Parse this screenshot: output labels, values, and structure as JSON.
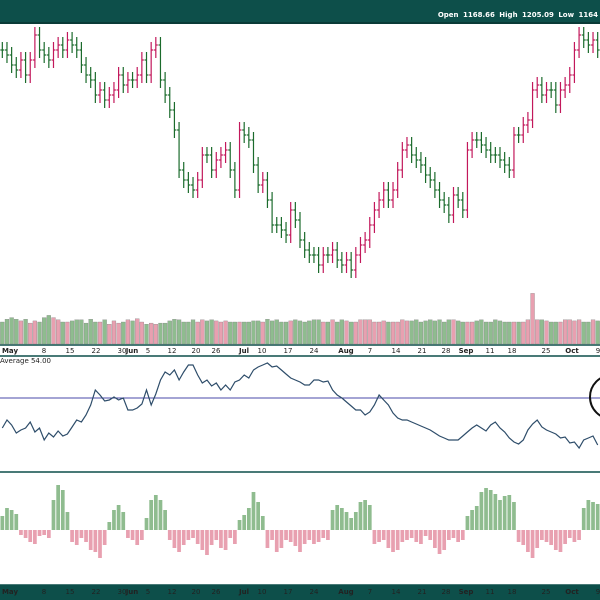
{
  "header": {
    "open_label": "Open",
    "open_value": "1168.66",
    "high_label": "High",
    "high_value": "1205.09",
    "low_label": "Low",
    "low_value": "1164"
  },
  "indicator": {
    "label": "Average 54.00"
  },
  "colors": {
    "up": "#1b6b2c",
    "down": "#c2185b",
    "vol_up": "#8fbc8f",
    "vol_down": "#e8a0b0",
    "line": "#2e4d6a",
    "ref_line": "#4a4aa8",
    "frame": "#0d4f4a"
  },
  "chart_data": [
    {
      "type": "ohlc",
      "ticks": [
        "May",
        "8",
        "15",
        "22",
        "30",
        "Jun",
        "5",
        "12",
        "20",
        "26",
        "Jul",
        "10",
        "17",
        "24",
        "Aug",
        "7",
        "14",
        "21",
        "28",
        "Sep",
        "11",
        "18",
        "25",
        "Oct",
        "9"
      ],
      "month_labels": [
        "May",
        "Jun",
        "Jul",
        "Aug",
        "Sep",
        "Oct"
      ],
      "close": [
        250,
        245,
        235,
        230,
        240,
        225,
        240,
        265,
        250,
        245,
        240,
        250,
        255,
        250,
        260,
        255,
        250,
        235,
        225,
        220,
        205,
        210,
        200,
        205,
        210,
        225,
        215,
        220,
        220,
        225,
        240,
        225,
        250,
        255,
        220,
        205,
        190,
        170,
        130,
        120,
        115,
        110,
        120,
        145,
        145,
        130,
        140,
        145,
        150,
        130,
        110,
        170,
        165,
        160,
        135,
        115,
        120,
        100,
        75,
        75,
        70,
        65,
        90,
        80,
        60,
        50,
        45,
        45,
        35,
        45,
        45,
        50,
        40,
        35,
        40,
        30,
        45,
        55,
        60,
        75,
        90,
        100,
        110,
        100,
        110,
        130,
        150,
        155,
        145,
        140,
        135,
        125,
        120,
        110,
        100,
        95,
        85,
        105,
        100,
        90,
        150,
        160,
        160,
        155,
        150,
        145,
        145,
        140,
        135,
        130,
        165,
        165,
        175,
        180,
        210,
        215,
        205,
        210,
        210,
        195,
        210,
        215,
        225,
        250,
        265,
        260,
        255,
        260,
        250
      ],
      "volume": [
        40,
        45,
        48,
        45,
        42,
        45,
        38,
        42,
        40,
        48,
        52,
        48,
        44,
        40,
        40,
        42,
        44,
        44,
        38,
        45,
        40,
        40,
        44,
        36,
        42,
        38,
        40,
        44,
        42,
        46,
        40,
        36,
        38,
        36,
        38,
        38,
        42,
        45,
        44,
        40,
        40,
        44,
        40,
        44,
        42,
        44,
        42,
        40,
        42,
        40,
        40,
        40,
        40,
        40,
        42,
        42,
        40,
        45,
        42,
        44,
        40,
        40,
        42,
        44,
        42,
        40,
        42,
        44,
        44,
        40,
        40,
        44,
        40,
        44,
        42,
        40,
        40,
        44,
        44,
        44,
        40,
        40,
        42,
        40,
        40,
        40,
        44,
        42,
        42,
        44,
        40,
        42,
        44,
        42,
        44,
        40,
        44,
        44,
        42,
        40,
        40,
        40,
        42,
        44,
        40,
        40,
        44,
        42,
        40,
        40,
        40,
        40,
        40,
        44,
        92,
        44,
        44,
        42,
        40,
        40,
        40,
        44,
        44,
        42,
        44,
        40,
        40,
        44,
        42
      ],
      "osc": [
        428,
        420,
        425,
        433,
        430,
        428,
        422,
        432,
        428,
        440,
        433,
        437,
        431,
        436,
        434,
        427,
        420,
        422,
        415,
        405,
        390,
        395,
        401,
        400,
        397,
        400,
        398,
        410,
        410,
        408,
        404,
        390,
        405,
        394,
        380,
        372,
        375,
        370,
        380,
        372,
        365,
        365,
        375,
        383,
        380,
        386,
        383,
        390,
        385,
        390,
        382,
        380,
        375,
        378,
        370,
        367,
        365,
        363,
        367,
        366,
        370,
        374,
        378,
        380,
        382,
        385,
        385,
        380,
        380,
        382,
        381,
        390,
        395,
        398,
        402,
        406,
        410,
        410,
        415,
        412,
        405,
        395,
        400,
        405,
        413,
        418,
        420,
        420,
        422,
        424,
        426,
        428,
        430,
        433,
        436,
        438,
        440,
        440,
        440,
        436,
        432,
        428,
        425,
        428,
        431,
        425,
        422,
        428,
        432,
        438,
        442,
        444,
        440,
        430,
        424,
        420,
        427,
        430,
        432,
        434,
        438,
        437,
        443,
        442,
        448,
        440,
        438,
        436,
        445
      ],
      "hist": [
        14,
        22,
        20,
        16,
        -5,
        -8,
        -12,
        -14,
        -6,
        -5,
        -8,
        30,
        45,
        40,
        18,
        -12,
        -15,
        -8,
        -12,
        -20,
        -22,
        -28,
        -15,
        8,
        20,
        25,
        18,
        -8,
        -10,
        -15,
        -10,
        12,
        30,
        35,
        30,
        20,
        -10,
        -18,
        -22,
        -15,
        -10,
        -8,
        -14,
        -20,
        -25,
        -15,
        -10,
        -18,
        -20,
        -8,
        -14,
        10,
        15,
        22,
        38,
        28,
        14,
        -18,
        -10,
        -22,
        -18,
        -10,
        -12,
        -16,
        -22,
        -14,
        -10,
        -14,
        -12,
        -8,
        -10,
        20,
        25,
        22,
        18,
        12,
        18,
        28,
        30,
        25,
        -14,
        -12,
        -10,
        -18,
        -22,
        -20,
        -12,
        -10,
        -8,
        -12,
        -14,
        -6,
        -10,
        -18,
        -24,
        -20,
        -10,
        -8,
        -12,
        -10,
        14,
        20,
        24,
        38,
        42,
        40,
        36,
        30,
        34,
        35,
        28,
        -12,
        -15,
        -22,
        -28,
        -18,
        -10,
        -12,
        -15,
        -20,
        -22,
        -14,
        -8,
        -12,
        -10,
        22,
        30,
        28,
        26,
        -8
      ],
      "ref_level": 398
    }
  ]
}
